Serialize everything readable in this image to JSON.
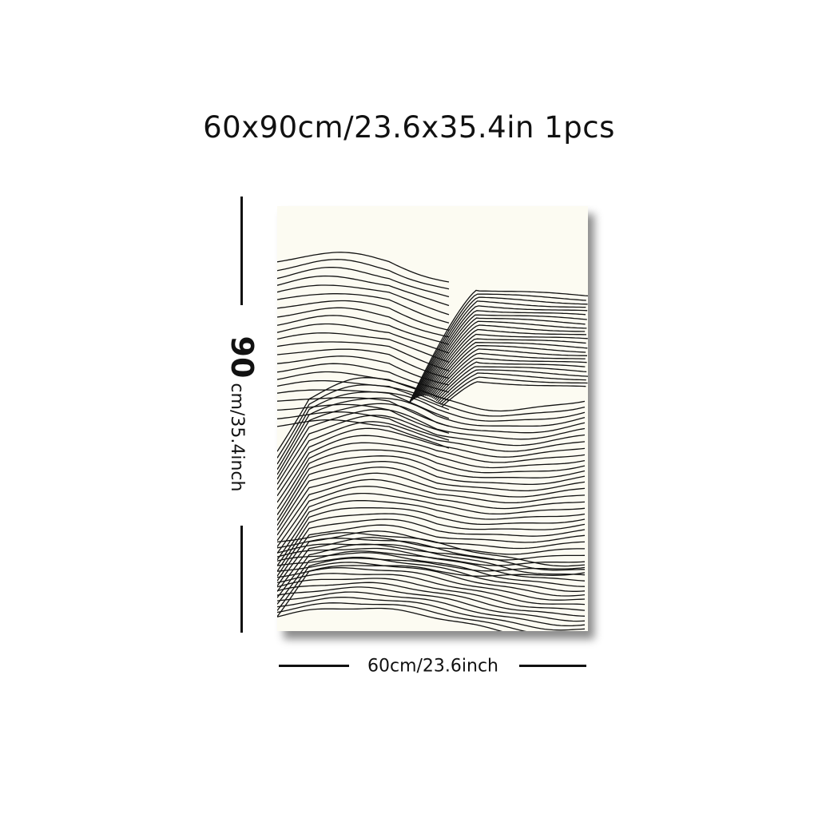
{
  "title": {
    "size_text": "60x90cm/23.6x35.4in",
    "quantity": "1pcs"
  },
  "height_label": {
    "value": "90",
    "unit_text": "cm/35.4inch"
  },
  "width_label": {
    "text": "60cm/23.6inch"
  },
  "artwork": {
    "background_color": "#fcfbf2",
    "line_color": "#111111",
    "subject": "line-art-wave-hills"
  }
}
